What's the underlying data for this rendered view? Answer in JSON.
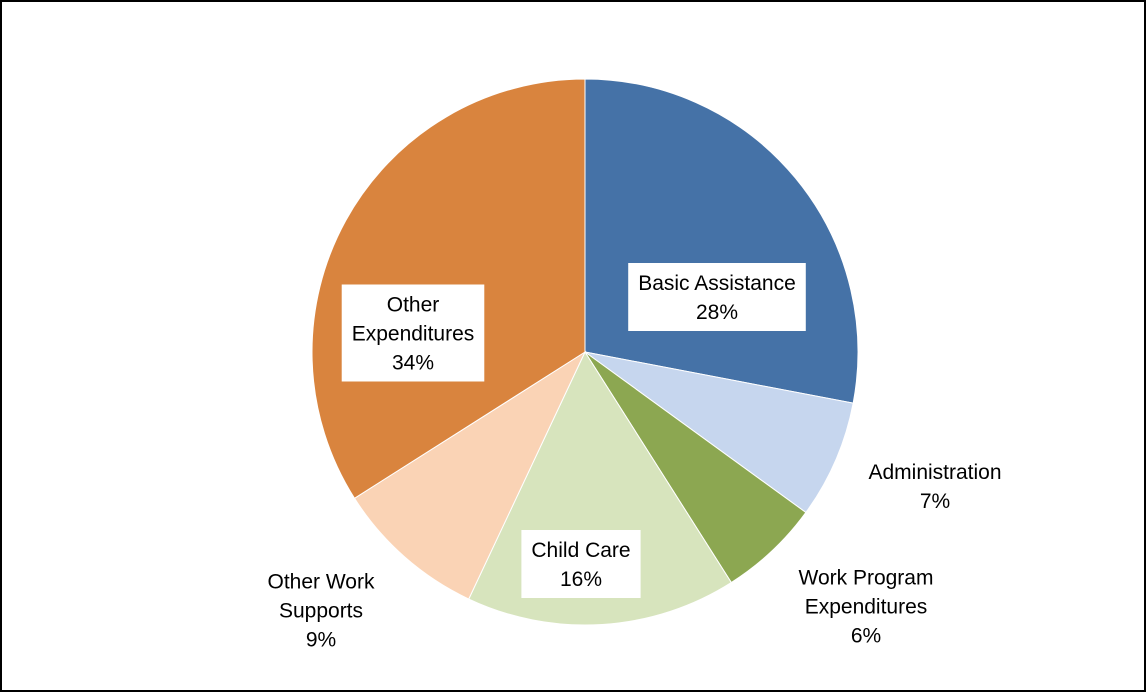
{
  "chart_data": {
    "type": "pie",
    "title": "",
    "slices": [
      {
        "name": "Basic Assistance",
        "value": 28,
        "percent_label": "28%",
        "color": "#4572A7",
        "label_lines": [
          "Basic Assistance"
        ],
        "label_box": true
      },
      {
        "name": "Administration",
        "value": 7,
        "percent_label": "7%",
        "color": "#C6D6EE",
        "label_lines": [
          "Administration"
        ],
        "label_box": false
      },
      {
        "name": "Work Program Expenditures",
        "value": 6,
        "percent_label": "6%",
        "color": "#8CA751",
        "label_lines": [
          "Work Program",
          "Expenditures"
        ],
        "label_box": false
      },
      {
        "name": "Child Care",
        "value": 16,
        "percent_label": "16%",
        "color": "#D7E4BD",
        "label_lines": [
          "Child Care"
        ],
        "label_box": true
      },
      {
        "name": "Other Work Supports",
        "value": 9,
        "percent_label": "9%",
        "color": "#FAD3B5",
        "label_lines": [
          "Other Work",
          "Supports"
        ],
        "label_box": false
      },
      {
        "name": "Other Expenditures",
        "value": 34,
        "percent_label": "34%",
        "color": "#D9843E",
        "label_lines": [
          "Other",
          "Expenditures"
        ],
        "label_box": true
      }
    ],
    "start_angle": "12 o'clock",
    "direction": "clockwise",
    "legend": "none"
  }
}
